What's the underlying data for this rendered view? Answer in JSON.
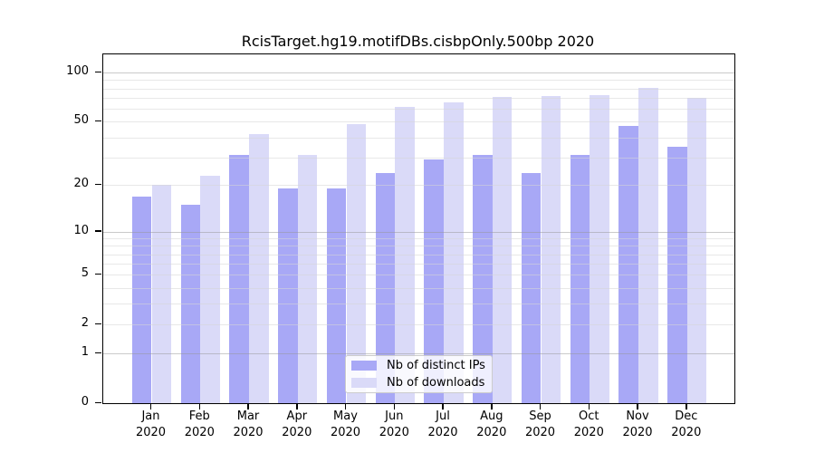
{
  "colors": {
    "bar_ips": "#a8a8f6",
    "bar_downloads": "#dadaf8",
    "grid_major": "rgba(150,150,150,0.5)",
    "grid_minor": "rgba(214,214,214,0.55)",
    "axis": "#000000",
    "legend_border": "#cccccc",
    "background": "#ffffff"
  },
  "legend": {
    "items": [
      {
        "label": "Nb of distinct IPs",
        "series": "ips"
      },
      {
        "label": "Nb of downloads",
        "series": "downloads"
      }
    ]
  },
  "chart_data": {
    "type": "bar",
    "title": "RcisTarget.hg19.motifDBs.cisbpOnly.500bp 2020",
    "categories": [
      "Jan",
      "Feb",
      "Mar",
      "Apr",
      "May",
      "Jun",
      "Jul",
      "Aug",
      "Sep",
      "Oct",
      "Nov",
      "Dec"
    ],
    "category_year": "2020",
    "series": [
      {
        "name": "Nb of distinct IPs",
        "key": "ips",
        "values": [
          17,
          15,
          31,
          19,
          19,
          24,
          29,
          31,
          24,
          31,
          47,
          35
        ]
      },
      {
        "name": "Nb of downloads",
        "key": "downloads",
        "values": [
          20,
          23,
          42,
          31,
          48,
          62,
          66,
          71,
          72,
          73,
          81,
          70
        ]
      }
    ],
    "xlabel": "",
    "ylabel": "",
    "y_ticks": [
      0,
      1,
      2,
      5,
      10,
      20,
      50,
      100
    ],
    "y_major_gridlines": [
      1,
      10,
      100
    ],
    "y_minor_gridlines": [
      2,
      3,
      4,
      5,
      6,
      7,
      8,
      9,
      20,
      30,
      40,
      50,
      60,
      70,
      80,
      90
    ],
    "y_scale": "log10(1+v)",
    "ylim": [
      0,
      129.4
    ],
    "grid": "on",
    "legend_position": "lower center"
  }
}
